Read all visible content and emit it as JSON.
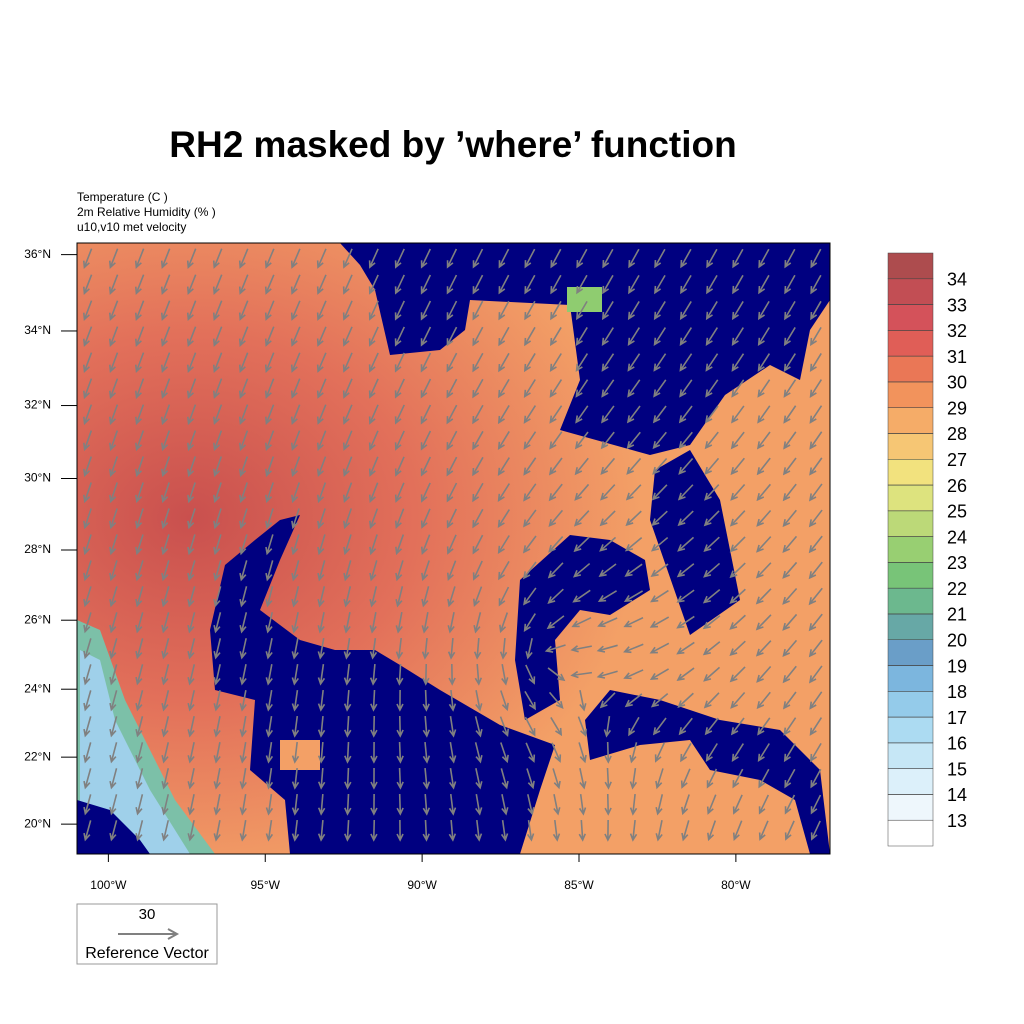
{
  "chart_data": {
    "type": "map",
    "title": "RH2 masked by ’where’ function",
    "subtitles": [
      "Temperature (C )",
      "2m Relative Humidity (% )",
      "u10,v10 met velocity"
    ],
    "xlim": [
      -101,
      -77
    ],
    "ylim": [
      19.1,
      36.3
    ],
    "xticks": [
      {
        "value": -100,
        "label": "100°W"
      },
      {
        "value": -95,
        "label": "95°W"
      },
      {
        "value": -90,
        "label": "90°W"
      },
      {
        "value": -85,
        "label": "85°W"
      },
      {
        "value": -80,
        "label": "80°W"
      }
    ],
    "yticks": [
      {
        "value": 20,
        "label": "20°N"
      },
      {
        "value": 22,
        "label": "22°N"
      },
      {
        "value": 24,
        "label": "24°N"
      },
      {
        "value": 26,
        "label": "26°N"
      },
      {
        "value": 28,
        "label": "28°N"
      },
      {
        "value": 30,
        "label": "30°N"
      },
      {
        "value": 32,
        "label": "32°N"
      },
      {
        "value": 34,
        "label": "34°N"
      },
      {
        "value": 36,
        "label": "36°N"
      }
    ],
    "colorbar": {
      "levels": [
        13,
        14,
        15,
        16,
        17,
        18,
        19,
        20,
        21,
        22,
        23,
        24,
        25,
        26,
        27,
        28,
        29,
        30,
        31,
        32,
        33,
        34
      ],
      "colors": [
        "#ffffff",
        "#eef7fc",
        "#dcf0fa",
        "#c6e7f6",
        "#acdbf2",
        "#94cbea",
        "#7cb6de",
        "#6a9ec8",
        "#67a8a6",
        "#6cb88e",
        "#78c478",
        "#98cf72",
        "#bcd978",
        "#dde37e",
        "#f2e27e",
        "#f6c674",
        "#f5ac68",
        "#f2935c",
        "#ea7756",
        "#e05e57",
        "#d4525a",
        "#c24e54",
        "#ad4c4e"
      ]
    },
    "reference_vector": {
      "magnitude": 30,
      "label": "Reference Vector"
    }
  }
}
